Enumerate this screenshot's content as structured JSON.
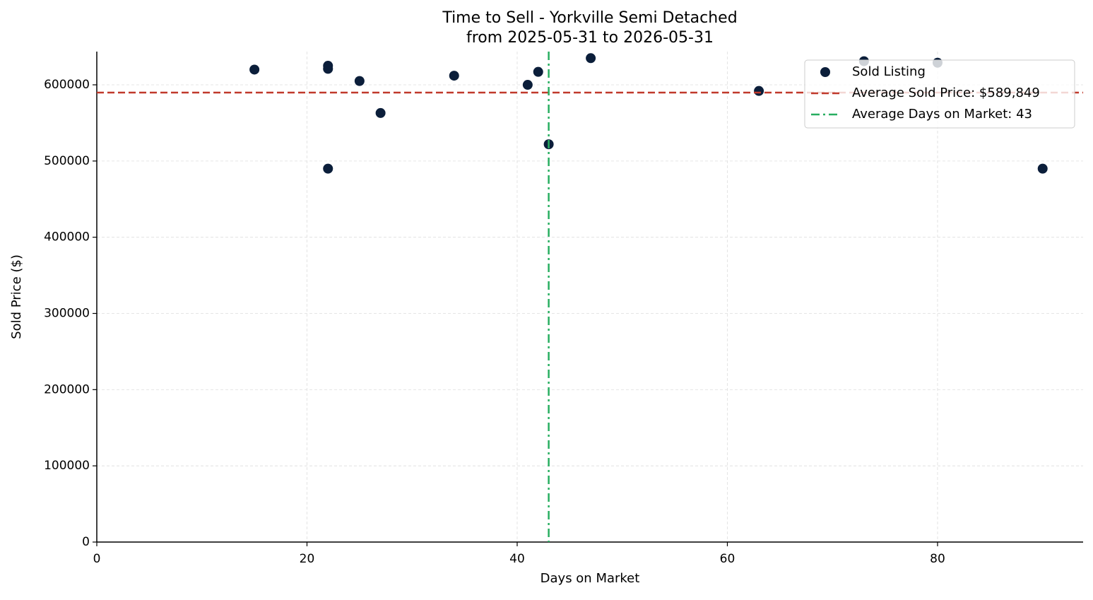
{
  "chart_data": {
    "type": "scatter",
    "title": "Time to Sell - Yorkville Semi Detached",
    "subtitle": "from 2025-05-31 to 2026-05-31",
    "xlabel": "Days on Market",
    "ylabel": "Sold Price ($)",
    "xlim": [
      0,
      93.85
    ],
    "ylim": [
      0,
      643600
    ],
    "xticks": [
      0,
      20,
      40,
      60,
      80
    ],
    "yticks": [
      0,
      100000,
      200000,
      300000,
      400000,
      500000,
      600000
    ],
    "grid": true,
    "legend": "upper right",
    "series": [
      {
        "name": "Sold Listing",
        "color": "#0b1e3a",
        "x": [
          15,
          22,
          22,
          22,
          25,
          27,
          34,
          41,
          42,
          43,
          47,
          63,
          73,
          80,
          90
        ],
        "values": [
          620000,
          625000,
          621000,
          490000,
          605000,
          563000,
          612000,
          600000,
          617000,
          522000,
          635000,
          592000,
          631000,
          629000,
          490000
        ]
      }
    ],
    "reference_lines": [
      {
        "name": "Average Sold Price: $589,849",
        "axis": "y",
        "value": 589849,
        "color": "#c0392b",
        "style": "dashed"
      },
      {
        "name": "Average Days on Market: 43",
        "axis": "x",
        "value": 43,
        "color": "#27ae60",
        "style": "dashdot"
      }
    ]
  }
}
